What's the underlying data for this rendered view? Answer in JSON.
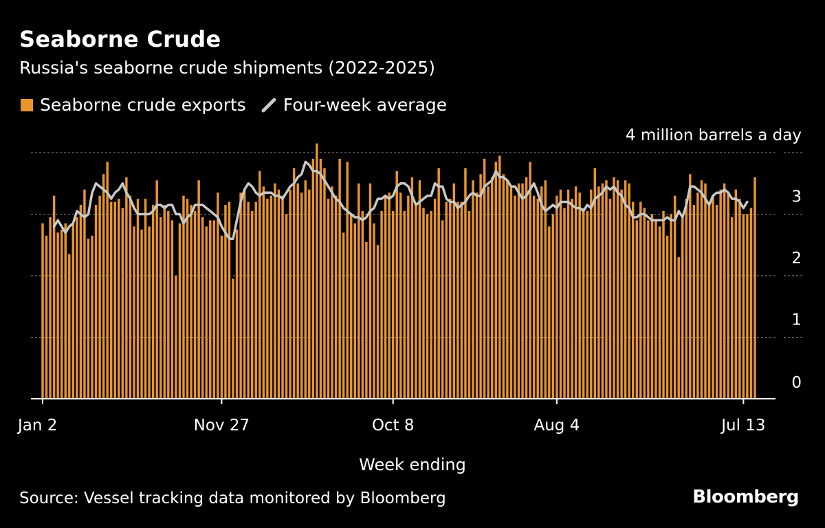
{
  "title": "Seaborne Crude",
  "subtitle": "Russia's seaborne crude shipments (2022-2025)",
  "legend": {
    "bars_label": "Seaborne crude exports",
    "line_label": "Four-week average"
  },
  "source": "Source: Vessel tracking data monitored by Bloomberg",
  "brand": "Bloomberg",
  "colors": {
    "bars": "#e8952d",
    "line": "#c8c8c8",
    "grid": "#8a8a8a",
    "background": "#000000"
  },
  "chart_data": {
    "type": "bar",
    "xlabel": "Week ending",
    "ylabel": "",
    "y_unit_label": "4 million barrels a day",
    "ylim": [
      0,
      4
    ],
    "y_ticks": [
      0,
      1,
      2,
      3,
      4
    ],
    "y_tick_labels": [
      "0",
      "1",
      "2",
      "3",
      ""
    ],
    "x_tick_labels": [
      {
        "label": "Jan 2",
        "index": 0
      },
      {
        "label": "Nov 27",
        "index": 47
      },
      {
        "label": "Oct 8",
        "index": 92
      },
      {
        "label": "Aug 4",
        "index": 135
      },
      {
        "label": "Jul 13",
        "index": 184
      }
    ],
    "grid": true,
    "series": [
      {
        "name": "Seaborne crude exports",
        "type": "bar",
        "values": [
          2.85,
          2.65,
          2.95,
          3.3,
          2.7,
          2.75,
          2.85,
          2.35,
          2.85,
          2.95,
          3.15,
          3.4,
          2.6,
          2.65,
          3.15,
          3.3,
          3.65,
          3.85,
          3.2,
          3.2,
          3.25,
          3.1,
          3.6,
          3.3,
          2.8,
          3.25,
          2.75,
          3.25,
          2.8,
          3.15,
          3.55,
          2.95,
          3.15,
          3.05,
          2.9,
          2.0,
          2.85,
          3.3,
          3.25,
          3.15,
          3.05,
          3.55,
          2.95,
          2.8,
          2.9,
          2.9,
          3.35,
          2.65,
          3.15,
          3.2,
          1.95,
          2.75,
          3.35,
          3.4,
          3.2,
          3.05,
          3.2,
          3.7,
          3.45,
          3.25,
          3.3,
          3.5,
          3.4,
          3.3,
          3.0,
          3.4,
          3.75,
          3.5,
          3.35,
          3.55,
          3.4,
          3.9,
          4.15,
          3.9,
          3.75,
          3.25,
          3.45,
          3.3,
          3.9,
          2.7,
          3.85,
          3.0,
          2.85,
          3.5,
          3.05,
          2.55,
          3.5,
          2.85,
          2.5,
          3.05,
          3.3,
          3.35,
          3.05,
          3.7,
          3.35,
          3.05,
          3.3,
          3.6,
          3.15,
          3.55,
          3.1,
          3.0,
          3.05,
          3.25,
          3.75,
          2.9,
          3.2,
          3.25,
          3.5,
          3.2,
          3.2,
          3.75,
          3.05,
          3.55,
          3.35,
          3.65,
          3.9,
          3.45,
          3.6,
          3.85,
          3.95,
          3.65,
          3.55,
          3.45,
          3.3,
          3.5,
          3.5,
          3.6,
          3.85,
          3.3,
          3.25,
          3.45,
          3.55,
          2.8,
          3.0,
          3.3,
          3.4,
          3.1,
          3.4,
          3.25,
          3.45,
          3.35,
          3.1,
          3.05,
          3.4,
          3.75,
          3.45,
          3.5,
          3.55,
          3.25,
          3.6,
          3.55,
          3.4,
          3.55,
          3.5,
          3.2,
          2.9,
          3.2,
          3.1,
          2.9,
          3.0,
          2.9,
          2.8,
          3.05,
          2.65,
          3.0,
          3.3,
          2.3,
          3.0,
          3.25,
          3.65,
          3.15,
          3.35,
          3.55,
          3.5,
          3.2,
          3.3,
          3.15,
          3.4,
          3.5,
          3.35,
          2.95,
          3.4,
          3.25,
          3.0,
          3.0,
          3.1,
          3.6
        ]
      },
      {
        "name": "Four-week average",
        "type": "line",
        "start_index": 3,
        "values": [
          2.8,
          2.9,
          2.8,
          2.7,
          2.8,
          2.85,
          3.05,
          3.0,
          2.95,
          3.0,
          3.35,
          3.5,
          3.45,
          3.4,
          3.35,
          3.25,
          3.35,
          3.4,
          3.5,
          3.35,
          3.25,
          3.1,
          3.0,
          3.0,
          3.0,
          3.0,
          3.05,
          3.15,
          3.15,
          3.1,
          3.15,
          3.15,
          3.0,
          3.0,
          2.85,
          2.95,
          3.0,
          3.15,
          3.15,
          3.15,
          3.1,
          3.05,
          3.0,
          2.95,
          2.8,
          2.7,
          2.6,
          2.6,
          2.9,
          3.2,
          3.4,
          3.5,
          3.45,
          3.35,
          3.3,
          3.35,
          3.35,
          3.35,
          3.3,
          3.3,
          3.25,
          3.35,
          3.45,
          3.5,
          3.6,
          3.65,
          3.85,
          3.8,
          3.7,
          3.7,
          3.65,
          3.55,
          3.45,
          3.35,
          3.25,
          3.2,
          3.1,
          3.05,
          3.0,
          2.95,
          2.95,
          2.9,
          2.95,
          3.05,
          3.1,
          3.25,
          3.25,
          3.3,
          3.25,
          3.3,
          3.45,
          3.5,
          3.5,
          3.45,
          3.3,
          3.15,
          3.2,
          3.25,
          3.3,
          3.3,
          3.5,
          3.45,
          3.45,
          3.25,
          3.2,
          3.2,
          3.1,
          3.15,
          3.2,
          3.3,
          3.35,
          3.3,
          3.3,
          3.45,
          3.5,
          3.55,
          3.7,
          3.6,
          3.6,
          3.55,
          3.45,
          3.45,
          3.35,
          3.25,
          3.3,
          3.4,
          3.5,
          3.35,
          3.15,
          3.05,
          3.1,
          3.15,
          3.1,
          3.2,
          3.2,
          3.2,
          3.15,
          3.1,
          3.1,
          3.05,
          3.15,
          3.1,
          3.25,
          3.3,
          3.35,
          3.45,
          3.4,
          3.45,
          3.35,
          3.3,
          3.15,
          3.1,
          2.95,
          2.95,
          3.0,
          3.0,
          2.95,
          2.9,
          2.9,
          2.9,
          2.9,
          2.95,
          2.9,
          2.9,
          3.05,
          2.95,
          3.15,
          3.45,
          3.45,
          3.4,
          3.35,
          3.25,
          3.15,
          3.3,
          3.35,
          3.35,
          3.4,
          3.35,
          3.25,
          3.25,
          3.2,
          3.1,
          3.2
        ]
      }
    ]
  }
}
